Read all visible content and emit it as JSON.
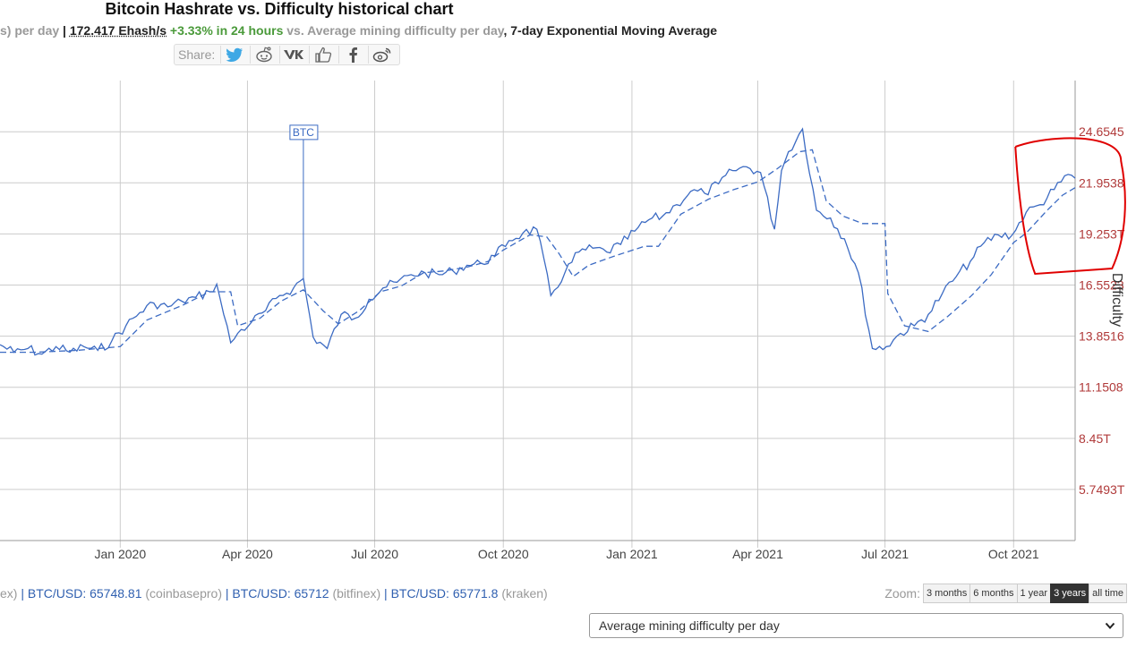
{
  "header": {
    "title": "Bitcoin Hashrate vs. Difficulty historical chart",
    "sub_prefix": "s) per day",
    "sub_sep": " | ",
    "sub_hash": "172.417 Ehash/s",
    "sub_change": " +3.33% in 24 hours",
    "sub_mid": " vs. Average mining difficulty per day",
    "sub_comma": ",",
    "sub_ema": " 7-day Exponential Moving Average"
  },
  "share": {
    "label": "Share:",
    "buttons": [
      "twitter-icon",
      "reddit-icon",
      "vk-icon",
      "like-icon",
      "facebook-icon",
      "weibo-icon"
    ]
  },
  "chart_data": {
    "type": "line",
    "title": "Bitcoin Hashrate vs. Difficulty historical chart",
    "x_ticks": [
      "Jan 2020",
      "Apr 2020",
      "Jul 2020",
      "Oct 2020",
      "Jan 2021",
      "Apr 2021",
      "Jul 2021",
      "Oct 2021"
    ],
    "y_ticks": [
      "24.6545",
      "21.9538",
      "19.253T",
      "16.5523",
      "13.8516",
      "11.1508",
      "8.45T",
      "5.7493T"
    ],
    "y_tick_values": [
      24.6545,
      21.9538,
      19.253,
      16.5523,
      13.8516,
      11.1508,
      8.45,
      5.7493
    ],
    "ylabel": "Difficulty",
    "ylim": [
      3.05,
      27.36
    ],
    "xlim": [
      "2019-10-07",
      "2021-11-14"
    ],
    "grid": true,
    "annotation": "BTC",
    "annotation_date": "2020-05-11",
    "colors": {
      "line": "#3c6bc3",
      "axis_labels": "#b03a3a",
      "grid": "#cccccc",
      "marker": "#e00000"
    },
    "series": [
      {
        "style": "solid",
        "x": [
          "2019-10-07",
          "2019-10-17",
          "2019-10-27",
          "2019-11-06",
          "2019-11-16",
          "2019-11-26",
          "2019-12-06",
          "2019-12-16",
          "2019-12-26",
          "2020-01-05",
          "2020-01-15",
          "2020-01-25",
          "2020-02-04",
          "2020-02-14",
          "2020-02-24",
          "2020-03-05",
          "2020-03-10",
          "2020-03-15",
          "2020-03-20",
          "2020-03-25",
          "2020-04-04",
          "2020-04-14",
          "2020-04-24",
          "2020-05-04",
          "2020-05-11",
          "2020-05-18",
          "2020-05-28",
          "2020-06-07",
          "2020-06-17",
          "2020-06-27",
          "2020-07-07",
          "2020-07-17",
          "2020-07-27",
          "2020-08-06",
          "2020-08-16",
          "2020-08-26",
          "2020-09-05",
          "2020-09-15",
          "2020-09-25",
          "2020-10-05",
          "2020-10-15",
          "2020-10-25",
          "2020-11-04",
          "2020-11-14",
          "2020-11-24",
          "2020-12-04",
          "2020-12-14",
          "2020-12-24",
          "2021-01-03",
          "2021-01-13",
          "2021-01-23",
          "2021-02-02",
          "2021-02-12",
          "2021-02-22",
          "2021-03-04",
          "2021-03-14",
          "2021-03-24",
          "2021-04-03",
          "2021-04-13",
          "2021-04-18",
          "2021-04-23",
          "2021-05-03",
          "2021-05-13",
          "2021-05-23",
          "2021-06-02",
          "2021-06-12",
          "2021-06-22",
          "2021-07-02",
          "2021-07-12",
          "2021-07-22",
          "2021-08-01",
          "2021-08-11",
          "2021-08-21",
          "2021-08-31",
          "2021-09-10",
          "2021-09-20",
          "2021-09-30",
          "2021-10-10",
          "2021-10-20",
          "2021-10-30",
          "2021-11-09",
          "2021-11-14"
        ],
        "values": [
          13.4,
          13.0,
          13.2,
          12.9,
          13.3,
          13.0,
          13.3,
          13.1,
          13.6,
          14.4,
          15.1,
          15.6,
          15.4,
          15.7,
          15.9,
          16.2,
          16.6,
          15.0,
          13.5,
          14.0,
          14.6,
          15.2,
          16.0,
          16.4,
          16.9,
          13.8,
          13.2,
          15.0,
          14.8,
          15.8,
          16.4,
          16.7,
          17.1,
          17.2,
          17.1,
          17.3,
          17.6,
          17.7,
          18.1,
          18.9,
          19.3,
          19.5,
          16.0,
          17.2,
          18.3,
          18.5,
          18.3,
          18.7,
          19.4,
          20.0,
          20.2,
          20.8,
          21.5,
          21.4,
          21.9,
          22.6,
          22.8,
          22.5,
          19.5,
          22.6,
          23.6,
          24.8,
          20.5,
          20.1,
          19.0,
          17.2,
          13.2,
          13.3,
          14.0,
          14.4,
          15.0,
          16.1,
          17.0,
          17.8,
          18.8,
          19.2,
          19.2,
          20.4,
          20.8,
          21.6,
          22.4,
          22.2
        ]
      },
      {
        "style": "dashed",
        "x": [
          "2019-10-07",
          "2019-11-01",
          "2019-12-01",
          "2020-01-01",
          "2020-01-20",
          "2020-02-15",
          "2020-03-05",
          "2020-03-20",
          "2020-03-25",
          "2020-04-10",
          "2020-04-25",
          "2020-05-11",
          "2020-05-25",
          "2020-06-05",
          "2020-06-20",
          "2020-07-05",
          "2020-07-20",
          "2020-08-05",
          "2020-08-20",
          "2020-09-05",
          "2020-09-20",
          "2020-10-01",
          "2020-10-20",
          "2020-11-01",
          "2020-11-10",
          "2020-11-20",
          "2020-12-01",
          "2020-12-20",
          "2021-01-10",
          "2021-01-20",
          "2021-02-05",
          "2021-02-25",
          "2021-03-15",
          "2021-04-01",
          "2021-04-15",
          "2021-05-01",
          "2021-05-10",
          "2021-05-20",
          "2021-06-01",
          "2021-06-15",
          "2021-07-01",
          "2021-07-03",
          "2021-07-15",
          "2021-08-01",
          "2021-08-15",
          "2021-09-01",
          "2021-09-15",
          "2021-10-01",
          "2021-10-10",
          "2021-10-25",
          "2021-11-05",
          "2021-11-14"
        ],
        "values": [
          13.0,
          13.0,
          13.1,
          13.3,
          14.7,
          15.5,
          16.2,
          16.2,
          14.4,
          14.8,
          15.7,
          16.3,
          15.2,
          14.5,
          15.2,
          16.2,
          16.5,
          17.2,
          17.3,
          17.5,
          17.8,
          18.4,
          19.2,
          19.1,
          18.2,
          17.0,
          17.6,
          18.1,
          18.6,
          18.6,
          20.3,
          21.1,
          21.6,
          22.0,
          22.7,
          23.6,
          23.7,
          21.0,
          20.2,
          19.8,
          19.8,
          16.1,
          14.4,
          14.1,
          14.9,
          16.0,
          17.1,
          18.8,
          19.3,
          20.5,
          21.3,
          21.7
        ]
      }
    ]
  },
  "prices": [
    {
      "prefix": "ex)",
      "value": "",
      "source": ""
    },
    {
      "prefix": "",
      "value": "BTC/USD: 65748.81",
      "source": "(coinbasepro)"
    },
    {
      "prefix": "",
      "value": "BTC/USD: 65712",
      "source": "(bitfinex)"
    },
    {
      "prefix": "",
      "value": "BTC/USD: 65771.8",
      "source": "(kraken)"
    }
  ],
  "prices_text": {
    "p0": "ex)",
    "sep": " | ",
    "v1": "BTC/USD: 65748.81",
    "s1": " (coinbasepro)",
    "v2": "BTC/USD: 65712",
    "s2": " (bitfinex)",
    "v3": "BTC/USD: 65771.8",
    "s3": " (kraken)"
  },
  "zoom": {
    "label": "Zoom:",
    "options": [
      "3 months",
      "6 months",
      "1 year",
      "3 years",
      "all time"
    ],
    "active": "3 years"
  },
  "metric_select": {
    "selected": "Average mining difficulty per day"
  }
}
